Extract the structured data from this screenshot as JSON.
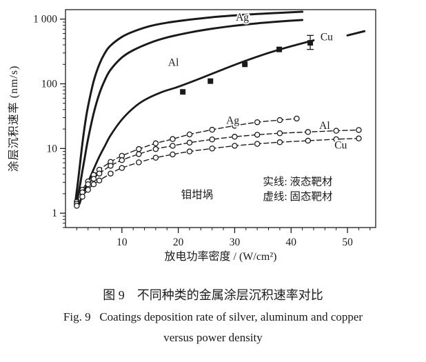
{
  "figure": {
    "caption_cn": "图 9　不同种类的金属涂层沉积速率对比",
    "caption_en_line1": "Fig. 9   Coatings deposition rate of silver, aluminum and copper",
    "caption_en_line2": "versus power density"
  },
  "chart_data": {
    "type": "line",
    "title": "",
    "xlabel": "放电功率密度 / (W/cm²)",
    "ylabel": "涂层沉积速率 (nm/s)",
    "x_axis": {
      "min": 0,
      "max": 55,
      "ticks": [
        10,
        20,
        30,
        40,
        50
      ],
      "minor_step": 2
    },
    "y_axis": {
      "scale": "log",
      "min": 0.6,
      "max": 1400,
      "ticks": [
        {
          "value": 1,
          "label": "1"
        },
        {
          "value": 10,
          "label": "10"
        },
        {
          "value": 100,
          "label": "100"
        },
        {
          "value": 1000,
          "label": "1 000"
        }
      ]
    },
    "line_color": "#1a1a1a",
    "legend_note": "实线 = 液态靶材, 虚线 = 固态靶材",
    "series": [
      {
        "id": "ag-solid",
        "name": "Ag 液态靶材(实线)",
        "line": "solid",
        "width": 3,
        "marker": "none",
        "points": [
          [
            1.8,
            1.6
          ],
          [
            2.2,
            3
          ],
          [
            2.6,
            6
          ],
          [
            3,
            12
          ],
          [
            3.5,
            25
          ],
          [
            4,
            45
          ],
          [
            5,
            110
          ],
          [
            6,
            200
          ],
          [
            7,
            300
          ],
          [
            8,
            390
          ],
          [
            10,
            530
          ],
          [
            12,
            640
          ],
          [
            15,
            780
          ],
          [
            18,
            880
          ],
          [
            22,
            980
          ],
          [
            26,
            1070
          ],
          [
            30,
            1140
          ],
          [
            34,
            1200
          ],
          [
            38,
            1250
          ],
          [
            42,
            1300
          ]
        ]
      },
      {
        "id": "al-solid",
        "name": "Al 液态靶材(实线)",
        "line": "solid",
        "width": 3,
        "marker": "none",
        "points": [
          [
            2,
            1.5
          ],
          [
            2.5,
            2.5
          ],
          [
            3,
            4.5
          ],
          [
            3.5,
            8
          ],
          [
            4,
            14
          ],
          [
            5,
            35
          ],
          [
            6,
            70
          ],
          [
            7,
            115
          ],
          [
            8,
            165
          ],
          [
            10,
            255
          ],
          [
            12,
            330
          ],
          [
            15,
            430
          ],
          [
            18,
            520
          ],
          [
            22,
            620
          ],
          [
            26,
            710
          ],
          [
            30,
            790
          ],
          [
            34,
            860
          ],
          [
            38,
            920
          ],
          [
            42,
            970
          ]
        ]
      },
      {
        "id": "cu-solid",
        "name": "Cu 液态靶材(实线)",
        "line": "solid",
        "width": 2.8,
        "marker": "square",
        "points": [
          [
            2.5,
            1.4
          ],
          [
            3,
            1.9
          ],
          [
            4,
            3
          ],
          [
            5,
            4.8
          ],
          [
            6,
            7.5
          ],
          [
            7,
            11
          ],
          [
            8,
            16
          ],
          [
            10,
            28
          ],
          [
            12,
            42
          ],
          [
            14,
            56
          ],
          [
            17,
            74
          ],
          [
            20,
            90
          ],
          [
            24,
            122
          ],
          [
            28,
            168
          ],
          [
            32,
            228
          ],
          [
            36,
            300
          ],
          [
            40,
            380
          ],
          [
            44,
            470
          ]
        ],
        "marker_points": [
          [
            20.8,
            75
          ],
          [
            25.7,
            110
          ],
          [
            31.8,
            200
          ],
          [
            37.9,
            340
          ],
          [
            43.4,
            430
          ]
        ],
        "error_bar": {
          "x": 43.4,
          "low": 340,
          "high": 560
        }
      },
      {
        "id": "cu-solid-ext",
        "name": "Cu 实线延伸段",
        "line": "solid",
        "width": 3,
        "marker": "none",
        "points": [
          [
            50,
            560
          ],
          [
            53,
            650
          ]
        ]
      },
      {
        "id": "ag-dashed",
        "name": "Ag 固态靶材(虚线)",
        "line": "dashed",
        "width": 1.4,
        "marker": "circle",
        "points": [
          [
            2,
            1.5
          ],
          [
            3,
            2.3
          ],
          [
            4,
            3.1
          ],
          [
            5,
            3.9
          ],
          [
            6,
            4.7
          ],
          [
            8,
            6.2
          ],
          [
            10,
            7.7
          ],
          [
            13,
            9.8
          ],
          [
            16,
            12
          ],
          [
            19,
            14
          ],
          [
            22,
            16.5
          ],
          [
            26,
            19.5
          ],
          [
            30,
            22.5
          ],
          [
            34,
            25.5
          ],
          [
            38,
            27.5
          ],
          [
            41,
            29
          ]
        ]
      },
      {
        "id": "al-dashed",
        "name": "Al 固态靶材(虚线)",
        "line": "dashed",
        "width": 1.4,
        "marker": "circle",
        "points": [
          [
            2,
            1.4
          ],
          [
            3,
            2.1
          ],
          [
            4,
            2.8
          ],
          [
            5,
            3.4
          ],
          [
            6,
            4.1
          ],
          [
            8,
            5.4
          ],
          [
            10,
            6.6
          ],
          [
            13,
            8.2
          ],
          [
            16,
            9.8
          ],
          [
            19,
            11
          ],
          [
            22,
            12.3
          ],
          [
            26,
            13.8
          ],
          [
            30,
            15.2
          ],
          [
            34,
            16.3
          ],
          [
            38,
            17.2
          ],
          [
            43,
            18
          ],
          [
            48,
            18.8
          ],
          [
            52,
            19.3
          ]
        ]
      },
      {
        "id": "cu-dashed",
        "name": "Cu 固态靶材(虚线)",
        "line": "dashed",
        "width": 1.4,
        "marker": "circle",
        "points": [
          [
            2,
            1.3
          ],
          [
            3,
            1.8
          ],
          [
            4,
            2.3
          ],
          [
            5,
            2.8
          ],
          [
            6,
            3.2
          ],
          [
            8,
            4.1
          ],
          [
            10,
            5
          ],
          [
            13,
            6.1
          ],
          [
            16,
            7.2
          ],
          [
            19,
            8.1
          ],
          [
            22,
            9
          ],
          [
            26,
            10
          ],
          [
            30,
            11
          ],
          [
            34,
            11.8
          ],
          [
            38,
            12.5
          ],
          [
            43,
            13.2
          ],
          [
            48,
            13.9
          ],
          [
            52,
            14.3
          ]
        ]
      }
    ],
    "annotations": [
      {
        "name": "label-ag-solid",
        "text": "Ag",
        "x": 30.2,
        "y": 950,
        "size": 16
      },
      {
        "name": "label-cu-solid",
        "text": "Cu",
        "x": 45.2,
        "y": 470,
        "size": 16
      },
      {
        "name": "label-al-solid",
        "text": "Al",
        "x": 18.2,
        "y": 190,
        "size": 16
      },
      {
        "name": "label-ag-dashed",
        "text": "Ag",
        "x": 28.5,
        "y": 24,
        "size": 15
      },
      {
        "name": "label-al-dashed",
        "text": "Al",
        "x": 45,
        "y": 20,
        "size": 15
      },
      {
        "name": "label-cu-dashed",
        "text": "Cu",
        "x": 47.7,
        "y": 10,
        "size": 15
      },
      {
        "name": "note-crucible",
        "text": "钼坩埚",
        "x": 20.5,
        "y": 1.7,
        "size": 16
      },
      {
        "name": "legend-solid-line",
        "text": "实线: 液态靶材",
        "x": 35,
        "y": 2.7,
        "size": 16
      },
      {
        "name": "legend-dashed-line",
        "text": "虚线: 固态靶材",
        "x": 35,
        "y": 1.6,
        "size": 16
      }
    ]
  }
}
